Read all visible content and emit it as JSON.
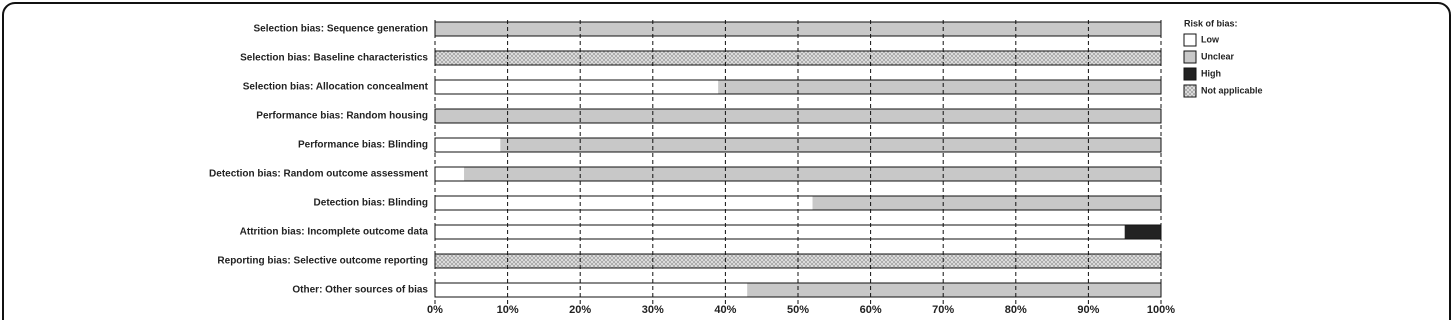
{
  "chart_data": {
    "type": "bar",
    "orientation": "horizontal",
    "stacked": true,
    "categories": [
      "Selection bias: Sequence generation",
      "Selection bias: Baseline characteristics",
      "Selection bias: Allocation concealment",
      "Performance bias: Random housing",
      "Performance bias: Blinding",
      "Detection bias: Random outcome assessment",
      "Detection bias: Blinding",
      "Attrition bias: Incomplete outcome data",
      "Reporting bias: Selective outcome reporting",
      "Other: Other sources of bias"
    ],
    "series": [
      {
        "name": "Low",
        "color": "#ffffff",
        "values": [
          0,
          0,
          39,
          0,
          9,
          4,
          52,
          95,
          0,
          43
        ]
      },
      {
        "name": "Unclear",
        "color": "#c8c8c8",
        "values": [
          100,
          0,
          61,
          100,
          91,
          96,
          48,
          0,
          0,
          57
        ]
      },
      {
        "name": "High",
        "color": "#222222",
        "values": [
          0,
          0,
          0,
          0,
          0,
          0,
          0,
          5,
          0,
          0
        ]
      },
      {
        "name": "Not applicable",
        "color": "#d4d4d4",
        "pattern": "crosshatch",
        "values": [
          0,
          100,
          0,
          0,
          0,
          0,
          0,
          0,
          100,
          0
        ]
      }
    ],
    "xlim": [
      0,
      100
    ],
    "xticks": [
      {
        "value": 0,
        "label": "0%"
      },
      {
        "value": 10,
        "label": "10%"
      },
      {
        "value": 20,
        "label": "20%"
      },
      {
        "value": 30,
        "label": "30%"
      },
      {
        "value": 40,
        "label": "40%"
      },
      {
        "value": 50,
        "label": "50%"
      },
      {
        "value": 60,
        "label": "60%"
      },
      {
        "value": 70,
        "label": "70%"
      },
      {
        "value": 80,
        "label": "80%"
      },
      {
        "value": 90,
        "label": "90%"
      },
      {
        "value": 100,
        "label": "100%"
      }
    ],
    "grid": true,
    "legend_title": "Risk of bias:",
    "legend_position": "right"
  }
}
